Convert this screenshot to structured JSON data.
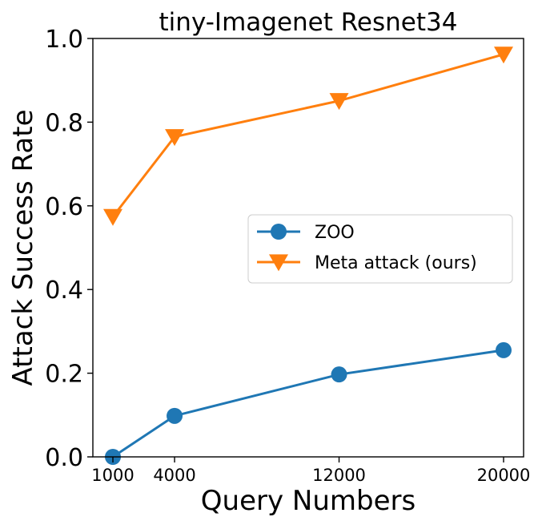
{
  "chart_data": {
    "type": "line",
    "title": "tiny-Imagenet Resnet34",
    "xlabel": "Query Numbers",
    "ylabel": "Attack Success Rate",
    "x": [
      1000,
      4000,
      12000,
      20000
    ],
    "xticks": [
      "1000",
      "4000",
      "12000",
      "20000"
    ],
    "ylim": [
      0.0,
      1.0
    ],
    "yticks": [
      "0.0",
      "0.2",
      "0.4",
      "0.6",
      "0.8",
      "1.0"
    ],
    "grid": false,
    "legend_position": "center-right",
    "series": [
      {
        "name": "ZOO",
        "values": [
          0.0,
          0.098,
          0.197,
          0.255
        ],
        "color": "#1f77b4",
        "marker": "circle"
      },
      {
        "name": "Meta attack (ours)",
        "values": [
          0.574,
          0.765,
          0.851,
          0.962
        ],
        "color": "#ff7f0e",
        "marker": "triangle-down"
      }
    ]
  }
}
